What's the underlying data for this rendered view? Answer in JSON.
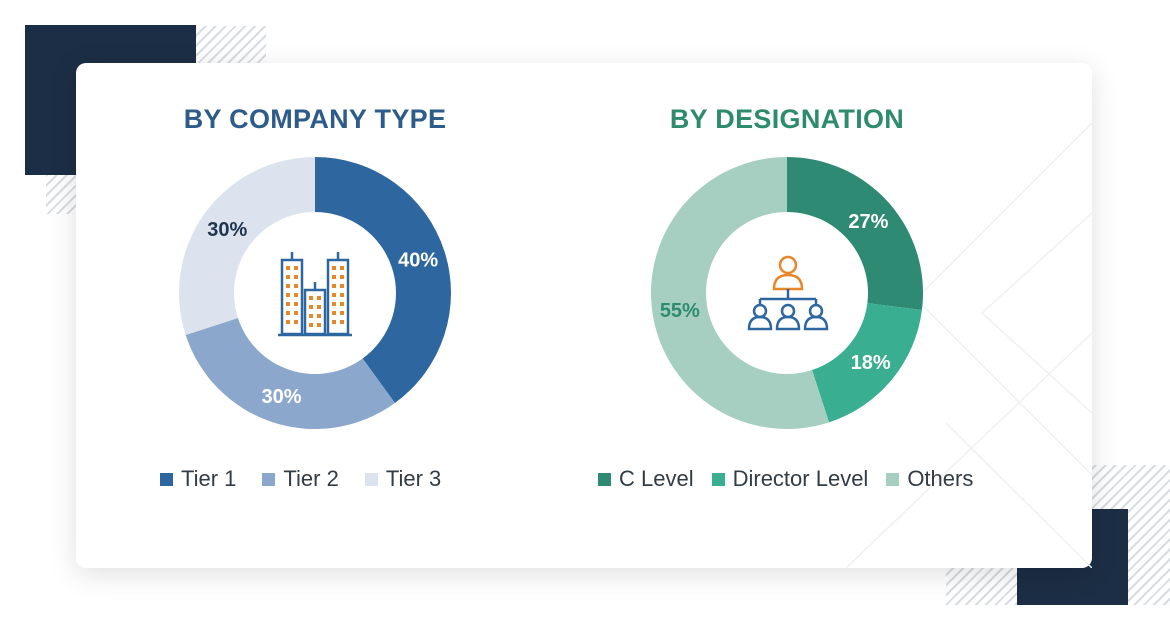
{
  "charts": {
    "company_type": {
      "title": "BY COMPANY TYPE",
      "title_color": "#2e5c8a",
      "label_color": "#1f3550",
      "icon": "office-buildings-icon"
    },
    "designation": {
      "title": "BY DESIGNATION",
      "title_color": "#2e8b6e",
      "label_color": "#2e8b6e",
      "icon": "org-hierarchy-icon"
    }
  },
  "chart_data": [
    {
      "type": "pie",
      "donut": true,
      "title": "BY COMPANY TYPE",
      "categories": [
        "Tier 1",
        "Tier 2",
        "Tier 3"
      ],
      "values": [
        40,
        30,
        30
      ],
      "labels": [
        "40%",
        "30%",
        "30%"
      ],
      "colors": [
        "#2e67a0",
        "#8ca7cc",
        "#dce3ee"
      ],
      "legend_position": "bottom"
    },
    {
      "type": "pie",
      "donut": true,
      "title": "BY DESIGNATION",
      "categories": [
        "C Level",
        "Director Level",
        "Others"
      ],
      "values": [
        27,
        18,
        55
      ],
      "labels": [
        "27%",
        "18%",
        "55%"
      ],
      "colors": [
        "#2e8a73",
        "#3aae90",
        "#a6cfc2"
      ],
      "legend_position": "bottom"
    }
  ]
}
